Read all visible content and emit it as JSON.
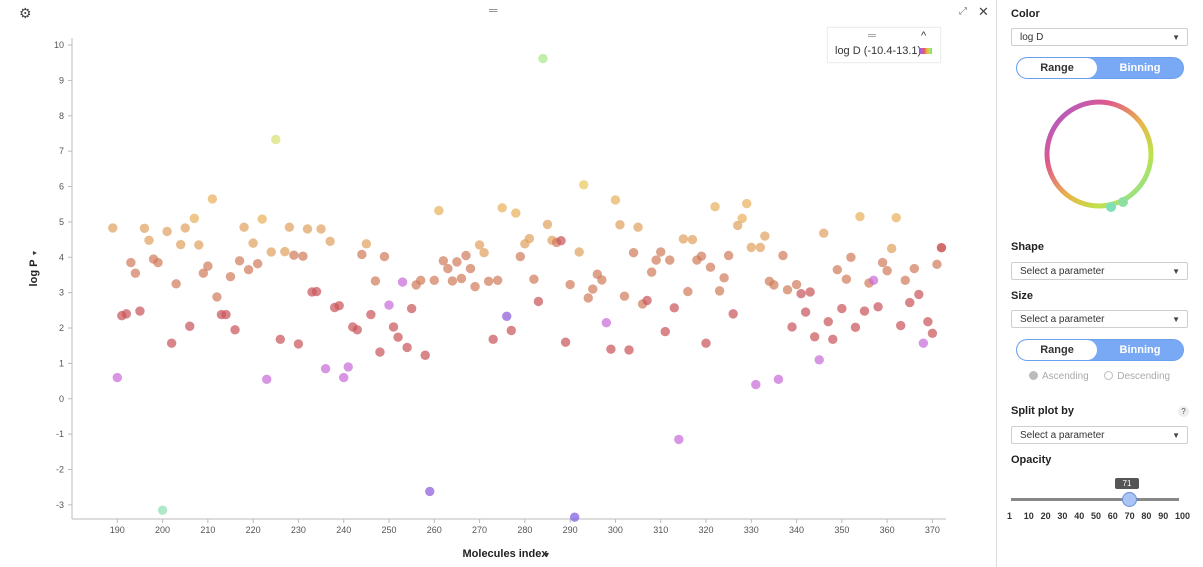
{
  "toolbar": {
    "drag_handle": "═"
  },
  "legend": {
    "label": "log D (-10.4-13.1)",
    "handle": "═",
    "caret": "^"
  },
  "panel": {
    "color_title": "Color",
    "color_value": "log D",
    "color_toggle": {
      "left": "Range",
      "right": "Binning"
    },
    "shape_title": "Shape",
    "shape_value": "Select a parameter",
    "size_title": "Size",
    "size_value": "Select a parameter",
    "size_toggle": {
      "left": "Range",
      "right": "Binning"
    },
    "sort": {
      "ascending": "Ascending",
      "descending": "Descending"
    },
    "split_title": "Split plot by",
    "split_value": "Select a parameter",
    "help": "?",
    "opacity_title": "Opacity",
    "opacity_value": "71",
    "opacity_ticks": [
      "1",
      "10",
      "20",
      "30",
      "40",
      "50",
      "60",
      "70",
      "80",
      "90",
      "100"
    ]
  },
  "chart_data": {
    "type": "scatter",
    "xlabel": "Molecules index",
    "ylabel": "log P",
    "xlim": [
      180,
      373
    ],
    "ylim": [
      -3.4,
      10.2
    ],
    "xticks": [
      190,
      200,
      210,
      220,
      230,
      240,
      250,
      260,
      270,
      280,
      290,
      300,
      310,
      320,
      330,
      340,
      350,
      360,
      370
    ],
    "yticks": [
      -3,
      -2,
      -1,
      0,
      1,
      2,
      3,
      4,
      5,
      6,
      7,
      8,
      9,
      10
    ],
    "color_by": "log D",
    "color_range": [
      -10.4,
      13.1
    ],
    "points": [
      [
        189,
        4.83,
        "#e0a060"
      ],
      [
        190,
        0.6,
        "#c86ad8"
      ],
      [
        191,
        2.35,
        "#c9545a"
      ],
      [
        192,
        2.4,
        "#c9545a"
      ],
      [
        193,
        3.85,
        "#d07a5a"
      ],
      [
        194,
        3.55,
        "#d07a5a"
      ],
      [
        195,
        2.48,
        "#c9545a"
      ],
      [
        196,
        4.82,
        "#e0a060"
      ],
      [
        197,
        4.48,
        "#e0a060"
      ],
      [
        198,
        3.95,
        "#d07a5a"
      ],
      [
        199,
        3.85,
        "#d07a5a"
      ],
      [
        200,
        -3.15,
        "#8ee0b0"
      ],
      [
        201,
        4.73,
        "#e0a060"
      ],
      [
        202,
        1.57,
        "#c9545a"
      ],
      [
        203,
        3.25,
        "#d07a5a"
      ],
      [
        204,
        4.36,
        "#e0a060"
      ],
      [
        205,
        4.83,
        "#e0a060"
      ],
      [
        206,
        2.05,
        "#c9545a"
      ],
      [
        207,
        5.1,
        "#e8b05a"
      ],
      [
        208,
        4.35,
        "#e0a060"
      ],
      [
        209,
        3.55,
        "#d07a5a"
      ],
      [
        210,
        3.75,
        "#d07a5a"
      ],
      [
        211,
        5.65,
        "#e8b05a"
      ],
      [
        212,
        2.88,
        "#d07a5a"
      ],
      [
        213,
        2.38,
        "#c9545a"
      ],
      [
        214,
        2.38,
        "#c9545a"
      ],
      [
        215,
        3.45,
        "#d07a5a"
      ],
      [
        216,
        1.95,
        "#c9545a"
      ],
      [
        217,
        3.9,
        "#d07a5a"
      ],
      [
        218,
        4.85,
        "#e0a060"
      ],
      [
        219,
        3.65,
        "#d07a5a"
      ],
      [
        220,
        4.4,
        "#e0a060"
      ],
      [
        221,
        3.82,
        "#d07a5a"
      ],
      [
        222,
        5.08,
        "#e8b05a"
      ],
      [
        223,
        0.55,
        "#c86ad8"
      ],
      [
        224,
        4.15,
        "#e0a060"
      ],
      [
        225,
        7.33,
        "#d8e070"
      ],
      [
        226,
        1.68,
        "#c9545a"
      ],
      [
        227,
        4.16,
        "#e0a060"
      ],
      [
        228,
        4.85,
        "#e0a060"
      ],
      [
        229,
        4.06,
        "#d07a5a"
      ],
      [
        230,
        1.55,
        "#c9545a"
      ],
      [
        231,
        4.03,
        "#d07a5a"
      ],
      [
        232,
        4.8,
        "#e0a060"
      ],
      [
        233,
        3.02,
        "#c9545a"
      ],
      [
        234,
        3.03,
        "#c9545a"
      ],
      [
        235,
        4.8,
        "#e0a060"
      ],
      [
        236,
        0.85,
        "#c86ad8"
      ],
      [
        237,
        4.45,
        "#e0a060"
      ],
      [
        238,
        2.58,
        "#c9545a"
      ],
      [
        239,
        2.63,
        "#c9545a"
      ],
      [
        240,
        0.6,
        "#c86ad8"
      ],
      [
        241,
        0.9,
        "#c86ad8"
      ],
      [
        242,
        2.03,
        "#c9545a"
      ],
      [
        243,
        1.95,
        "#c9545a"
      ],
      [
        244,
        4.08,
        "#d07a5a"
      ],
      [
        245,
        4.38,
        "#e0a060"
      ],
      [
        246,
        2.38,
        "#c9545a"
      ],
      [
        247,
        3.33,
        "#d07a5a"
      ],
      [
        248,
        1.32,
        "#c9545a"
      ],
      [
        249,
        4.02,
        "#d07a5a"
      ],
      [
        250,
        2.65,
        "#c86ad8"
      ],
      [
        251,
        2.03,
        "#c9545a"
      ],
      [
        252,
        1.74,
        "#c9545a"
      ],
      [
        253,
        3.3,
        "#c86ad8"
      ],
      [
        254,
        1.45,
        "#c9545a"
      ],
      [
        255,
        2.55,
        "#c9545a"
      ],
      [
        256,
        3.22,
        "#d07a5a"
      ],
      [
        257,
        3.35,
        "#d07a5a"
      ],
      [
        258,
        1.23,
        "#c9545a"
      ],
      [
        259,
        -2.62,
        "#8a5ad8"
      ],
      [
        260,
        3.35,
        "#d07a5a"
      ],
      [
        261,
        5.32,
        "#e8b05a"
      ],
      [
        262,
        3.9,
        "#d07a5a"
      ],
      [
        263,
        3.68,
        "#d07a5a"
      ],
      [
        264,
        3.33,
        "#d07a5a"
      ],
      [
        265,
        3.87,
        "#d07a5a"
      ],
      [
        266,
        3.4,
        "#d07a5a"
      ],
      [
        267,
        4.05,
        "#d07a5a"
      ],
      [
        268,
        3.68,
        "#d07a5a"
      ],
      [
        269,
        3.17,
        "#d07a5a"
      ],
      [
        270,
        4.35,
        "#e0a060"
      ],
      [
        271,
        4.13,
        "#e0a060"
      ],
      [
        272,
        3.32,
        "#d07a5a"
      ],
      [
        273,
        1.68,
        "#c9545a"
      ],
      [
        274,
        3.35,
        "#d07a5a"
      ],
      [
        275,
        5.4,
        "#e8b05a"
      ],
      [
        276,
        2.33,
        "#8a5ad8"
      ],
      [
        277,
        1.93,
        "#c9545a"
      ],
      [
        278,
        5.25,
        "#e8b05a"
      ],
      [
        279,
        4.02,
        "#d07a5a"
      ],
      [
        280,
        4.38,
        "#e0a060"
      ],
      [
        281,
        4.53,
        "#e0a060"
      ],
      [
        282,
        3.38,
        "#d07a5a"
      ],
      [
        283,
        2.75,
        "#c9545a"
      ],
      [
        284,
        9.62,
        "#a8e888"
      ],
      [
        285,
        4.93,
        "#e0a060"
      ],
      [
        286,
        4.48,
        "#e0a060"
      ],
      [
        287,
        4.42,
        "#d07a5a"
      ],
      [
        288,
        4.47,
        "#c9545a"
      ],
      [
        289,
        1.6,
        "#c9545a"
      ],
      [
        290,
        3.23,
        "#d07a5a"
      ],
      [
        291,
        -3.35,
        "#7a5ae0"
      ],
      [
        292,
        4.15,
        "#e0a060"
      ],
      [
        293,
        6.05,
        "#e8c85a"
      ],
      [
        294,
        2.85,
        "#d07a5a"
      ],
      [
        295,
        3.1,
        "#d07a5a"
      ],
      [
        296,
        3.52,
        "#d07a5a"
      ],
      [
        297,
        3.36,
        "#d07a5a"
      ],
      [
        298,
        2.15,
        "#c86ad8"
      ],
      [
        299,
        1.4,
        "#c9545a"
      ],
      [
        300,
        5.62,
        "#e8b05a"
      ],
      [
        301,
        4.92,
        "#e0a060"
      ],
      [
        302,
        2.9,
        "#d07a5a"
      ],
      [
        303,
        1.38,
        "#c9545a"
      ],
      [
        304,
        4.13,
        "#d07a5a"
      ],
      [
        305,
        4.85,
        "#e0a060"
      ],
      [
        306,
        2.68,
        "#d07a5a"
      ],
      [
        307,
        2.78,
        "#c9545a"
      ],
      [
        308,
        3.58,
        "#d07a5a"
      ],
      [
        309,
        3.92,
        "#d07a5a"
      ],
      [
        310,
        4.15,
        "#d07a5a"
      ],
      [
        311,
        1.9,
        "#c9545a"
      ],
      [
        312,
        3.92,
        "#d07a5a"
      ],
      [
        313,
        2.57,
        "#c9545a"
      ],
      [
        314,
        -1.15,
        "#c86ad8"
      ],
      [
        315,
        4.52,
        "#e0a060"
      ],
      [
        316,
        3.03,
        "#d07a5a"
      ],
      [
        317,
        4.5,
        "#e0a060"
      ],
      [
        318,
        3.92,
        "#d07a5a"
      ],
      [
        319,
        4.03,
        "#d07a5a"
      ],
      [
        320,
        1.57,
        "#c9545a"
      ],
      [
        321,
        3.72,
        "#d07a5a"
      ],
      [
        322,
        5.43,
        "#e8b05a"
      ],
      [
        323,
        3.05,
        "#d07a5a"
      ],
      [
        324,
        3.42,
        "#d07a5a"
      ],
      [
        325,
        4.05,
        "#d07a5a"
      ],
      [
        326,
        2.4,
        "#c9545a"
      ],
      [
        327,
        4.9,
        "#e0a060"
      ],
      [
        328,
        5.1,
        "#e8b05a"
      ],
      [
        329,
        5.52,
        "#e8b05a"
      ],
      [
        330,
        4.28,
        "#e0a060"
      ],
      [
        331,
        0.4,
        "#c86ad8"
      ],
      [
        332,
        4.28,
        "#e0a060"
      ],
      [
        333,
        4.6,
        "#e0a060"
      ],
      [
        334,
        3.32,
        "#d07a5a"
      ],
      [
        335,
        3.22,
        "#d07a5a"
      ],
      [
        336,
        0.55,
        "#c86ad8"
      ],
      [
        337,
        4.05,
        "#d07a5a"
      ],
      [
        338,
        3.08,
        "#d07a5a"
      ],
      [
        339,
        2.03,
        "#c9545a"
      ],
      [
        340,
        3.23,
        "#d07a5a"
      ],
      [
        341,
        2.97,
        "#c9545a"
      ],
      [
        342,
        2.45,
        "#c9545a"
      ],
      [
        343,
        3.02,
        "#c9545a"
      ],
      [
        344,
        1.75,
        "#c9545a"
      ],
      [
        345,
        1.1,
        "#c86ad8"
      ],
      [
        346,
        4.68,
        "#e0a060"
      ],
      [
        347,
        2.18,
        "#c9545a"
      ],
      [
        348,
        1.68,
        "#c9545a"
      ],
      [
        349,
        3.65,
        "#d07a5a"
      ],
      [
        350,
        2.55,
        "#c9545a"
      ],
      [
        351,
        3.38,
        "#d07a5a"
      ],
      [
        352,
        4.0,
        "#d07a5a"
      ],
      [
        353,
        2.02,
        "#c9545a"
      ],
      [
        354,
        5.15,
        "#e8b05a"
      ],
      [
        355,
        2.48,
        "#c9545a"
      ],
      [
        356,
        3.27,
        "#d07a5a"
      ],
      [
        357,
        3.35,
        "#c86ad8"
      ],
      [
        358,
        2.6,
        "#c9545a"
      ],
      [
        359,
        3.85,
        "#d07a5a"
      ],
      [
        360,
        3.62,
        "#d07a5a"
      ],
      [
        361,
        4.25,
        "#e0a060"
      ],
      [
        362,
        5.12,
        "#e8b05a"
      ],
      [
        363,
        2.07,
        "#c9545a"
      ],
      [
        364,
        3.35,
        "#d07a5a"
      ],
      [
        365,
        2.72,
        "#c9545a"
      ],
      [
        366,
        3.68,
        "#d07a5a"
      ],
      [
        367,
        2.95,
        "#c9545a"
      ],
      [
        368,
        1.57,
        "#c86ad8"
      ],
      [
        369,
        2.18,
        "#c9545a"
      ],
      [
        370,
        1.85,
        "#c9545a"
      ],
      [
        371,
        3.8,
        "#d07a5a"
      ],
      [
        372,
        4.27,
        "#c03030"
      ]
    ],
    "grid": false,
    "legend_position": "top-right"
  }
}
